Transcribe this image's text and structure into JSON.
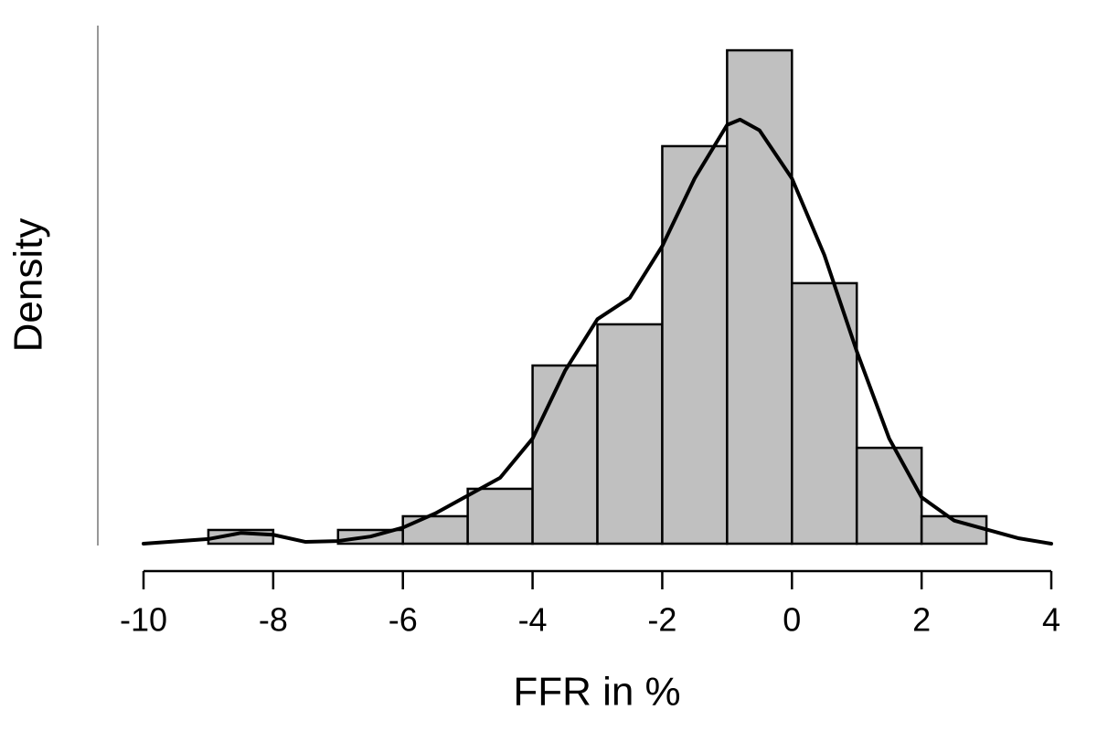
{
  "chart_data": {
    "type": "histogram",
    "x_label": "FFR in %",
    "y_label": "Density",
    "bins": [
      -9,
      -8,
      -7,
      -6,
      -5,
      -4,
      -3,
      -2,
      -1,
      0,
      1,
      2,
      3
    ],
    "values": [
      0.0077,
      0,
      0.0077,
      0.0154,
      0.0308,
      0.1,
      0.1231,
      0.2231,
      0.2769,
      0.1462,
      0.0538,
      0.0154
    ],
    "color": "#c0c0c0",
    "xlim": [
      -10,
      4
    ],
    "xticks": [
      -10,
      -8,
      -6,
      -4,
      -2,
      0,
      2,
      4
    ],
    "ylim": [
      0,
      0.29
    ],
    "density": {
      "color": "#000000",
      "x": [
        -10,
        -9,
        -8.5,
        -8,
        -7.5,
        -7,
        -6.5,
        -6,
        -5.5,
        -5,
        -4.5,
        -4,
        -3.5,
        -3,
        -2.5,
        -2,
        -1.5,
        -1,
        -0.8,
        -0.5,
        0,
        0.5,
        1,
        1.5,
        2,
        2.5,
        3,
        3.5,
        4
      ],
      "values": [
        0,
        0.0026,
        0.006,
        0.005,
        0.001,
        0.0015,
        0.004,
        0.009,
        0.017,
        0.027,
        0.037,
        0.059,
        0.097,
        0.126,
        0.138,
        0.167,
        0.205,
        0.235,
        0.238,
        0.232,
        0.205,
        0.162,
        0.108,
        0.059,
        0.026,
        0.013,
        0.008,
        0.003,
        0
      ]
    }
  }
}
